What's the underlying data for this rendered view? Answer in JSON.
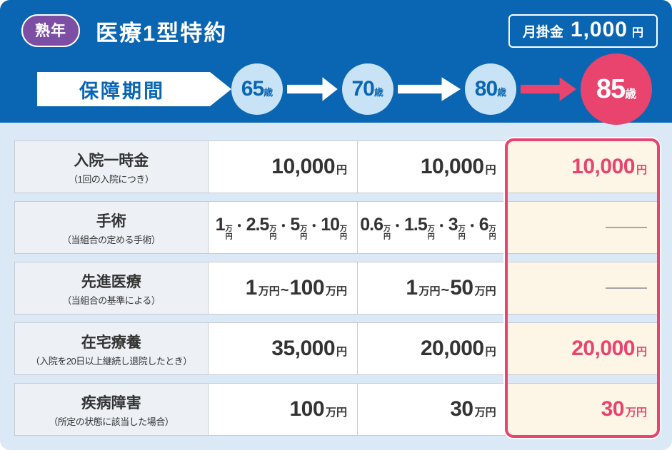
{
  "header": {
    "badge": "熟年",
    "title": "医療1型特約",
    "premium_label": "月掛金",
    "premium_value": "1,000",
    "premium_unit": "円"
  },
  "timeline": {
    "banner": "保障期間",
    "ages": [
      {
        "num": "65",
        "unit": "歳",
        "style": "normal"
      },
      {
        "num": "70",
        "unit": "歳",
        "style": "normal"
      },
      {
        "num": "80",
        "unit": "歳",
        "style": "normal"
      },
      {
        "num": "85",
        "unit": "歳",
        "style": "highlight"
      }
    ]
  },
  "table": {
    "rows": [
      {
        "label": "入院一時金",
        "sublabel": "（1回の入院につき）",
        "cells": [
          [
            [
              "num",
              "10,000"
            ],
            [
              "unit",
              "円"
            ]
          ],
          [
            [
              "num",
              "10,000"
            ],
            [
              "unit",
              "円"
            ]
          ],
          [
            [
              "num",
              "10,000"
            ],
            [
              "unit",
              "円"
            ]
          ]
        ]
      },
      {
        "label": "手術",
        "sublabel": "（当組合の定める手術）",
        "cells": [
          [
            [
              "num2",
              "1"
            ],
            [
              "stack",
              "万円"
            ],
            [
              "dot",
              "・"
            ],
            [
              "num2",
              "2.5"
            ],
            [
              "stack",
              "万円"
            ],
            [
              "dot",
              "・"
            ],
            [
              "num2",
              "5"
            ],
            [
              "stack",
              "万円"
            ],
            [
              "dot",
              "・"
            ],
            [
              "num2",
              "10"
            ],
            [
              "stack",
              "万円"
            ]
          ],
          [
            [
              "num2",
              "0.6"
            ],
            [
              "stack",
              "万円"
            ],
            [
              "dot",
              "・"
            ],
            [
              "num2",
              "1.5"
            ],
            [
              "stack",
              "万円"
            ],
            [
              "dot",
              "・"
            ],
            [
              "num2",
              "3"
            ],
            [
              "stack",
              "万円"
            ],
            [
              "dot",
              "・"
            ],
            [
              "num2",
              "6"
            ],
            [
              "stack",
              "万円"
            ]
          ],
          [
            [
              "dash",
              ""
            ]
          ]
        ]
      },
      {
        "label": "先進医療",
        "sublabel": "（当組合の基準による）",
        "cells": [
          [
            [
              "num",
              "1"
            ],
            [
              "unit",
              "万円"
            ],
            [
              "tilde",
              "~"
            ],
            [
              "num",
              "100"
            ],
            [
              "unit",
              "万円"
            ]
          ],
          [
            [
              "num",
              "1"
            ],
            [
              "unit",
              "万円"
            ],
            [
              "tilde",
              "~"
            ],
            [
              "num",
              "50"
            ],
            [
              "unit",
              "万円"
            ]
          ],
          [
            [
              "dash",
              ""
            ]
          ]
        ]
      },
      {
        "label": "在宅療養",
        "sublabel": "（入院を20日以上継続し退院したとき）",
        "cells": [
          [
            [
              "num",
              "35,000"
            ],
            [
              "unit",
              "円"
            ]
          ],
          [
            [
              "num",
              "20,000"
            ],
            [
              "unit",
              "円"
            ]
          ],
          [
            [
              "num",
              "20,000"
            ],
            [
              "unit",
              "円"
            ]
          ]
        ]
      },
      {
        "label": "疾病障害",
        "sublabel": "（所定の状態に該当した場合）",
        "cells": [
          [
            [
              "num",
              "100"
            ],
            [
              "unit",
              "万円"
            ]
          ],
          [
            [
              "num",
              "30"
            ],
            [
              "unit",
              "万円"
            ]
          ],
          [
            [
              "num",
              "30"
            ],
            [
              "unit",
              "万円"
            ]
          ]
        ]
      }
    ]
  },
  "colors": {
    "header_blue": "#0A66B2",
    "page_light_blue": "#DBE8F5",
    "accent_pink": "#E8446E",
    "highlight_cream": "#FDF5E6",
    "badge_purple": "#7C4FA5",
    "circle_light_blue": "#C8E3F6",
    "value_text": "#333333"
  }
}
